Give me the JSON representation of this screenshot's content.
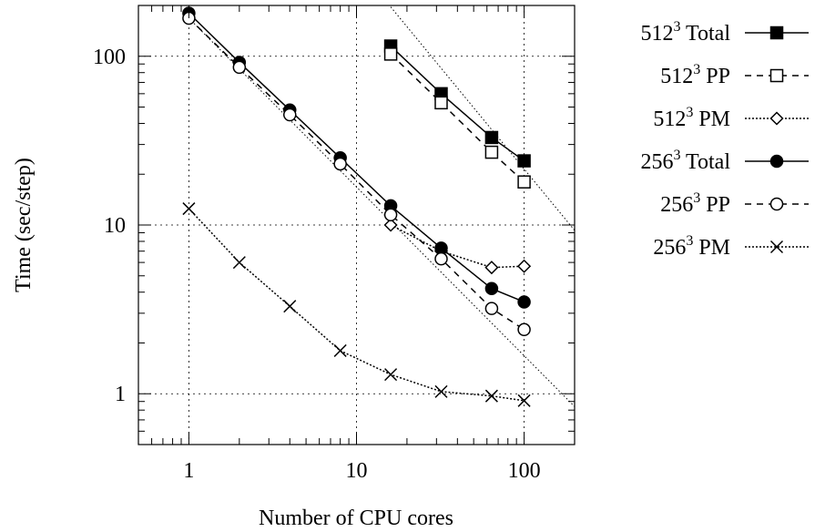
{
  "chart_data": {
    "type": "line",
    "title": "",
    "xlabel": "Number of CPU cores",
    "ylabel": "Time (sec/step)",
    "x_scale": "log",
    "y_scale": "log",
    "xlim": [
      0.5,
      200
    ],
    "ylim": [
      0.5,
      200
    ],
    "x_ticks": [
      1,
      10,
      100
    ],
    "x_tick_labels": [
      "1",
      "10",
      "100"
    ],
    "y_ticks": [
      1,
      10,
      100
    ],
    "y_tick_labels": [
      "1",
      "10",
      "100"
    ],
    "grid": true,
    "legend_position": "outside-right",
    "series": [
      {
        "name": "Total",
        "size_base": "512",
        "size_exp": "3",
        "line_style": "solid",
        "marker": "filled-square",
        "x": [
          16,
          32,
          64,
          100
        ],
        "y": [
          115,
          60,
          33,
          24
        ]
      },
      {
        "name": "PP",
        "size_base": "512",
        "size_exp": "3",
        "line_style": "dashed",
        "marker": "open-square",
        "x": [
          16,
          32,
          64,
          100
        ],
        "y": [
          103,
          53,
          27,
          18
        ]
      },
      {
        "name": "PM",
        "size_base": "512",
        "size_exp": "3",
        "line_style": "dotted",
        "marker": "open-diamond",
        "x": [
          16,
          32,
          64,
          100
        ],
        "y": [
          10,
          7.0,
          5.6,
          5.7
        ]
      },
      {
        "name": "Total",
        "size_base": "256",
        "size_exp": "3",
        "line_style": "solid",
        "marker": "filled-circle",
        "x": [
          1,
          2,
          4,
          8,
          16,
          32,
          64,
          100
        ],
        "y": [
          180,
          92,
          48,
          25,
          13,
          7.3,
          4.2,
          3.5
        ]
      },
      {
        "name": "PP",
        "size_base": "256",
        "size_exp": "3",
        "line_style": "dashed",
        "marker": "open-circle",
        "x": [
          1,
          2,
          4,
          8,
          16,
          32,
          64,
          100
        ],
        "y": [
          168,
          86,
          45,
          23,
          11.5,
          6.3,
          3.2,
          2.4
        ]
      },
      {
        "name": "PM",
        "size_base": "256",
        "size_exp": "3",
        "line_style": "dotted",
        "marker": "cross",
        "x": [
          1,
          2,
          4,
          8,
          16,
          32,
          64,
          100
        ],
        "y": [
          12.5,
          6.0,
          3.3,
          1.8,
          1.3,
          1.03,
          0.97,
          0.91
        ]
      }
    ],
    "reference_lines": [
      {
        "style": "dotted",
        "x": [
          1,
          200
        ],
        "y": [
          168,
          0.84
        ]
      },
      {
        "style": "dotted",
        "x": [
          16,
          200
        ],
        "y": [
          196,
          9.3
        ]
      }
    ]
  }
}
